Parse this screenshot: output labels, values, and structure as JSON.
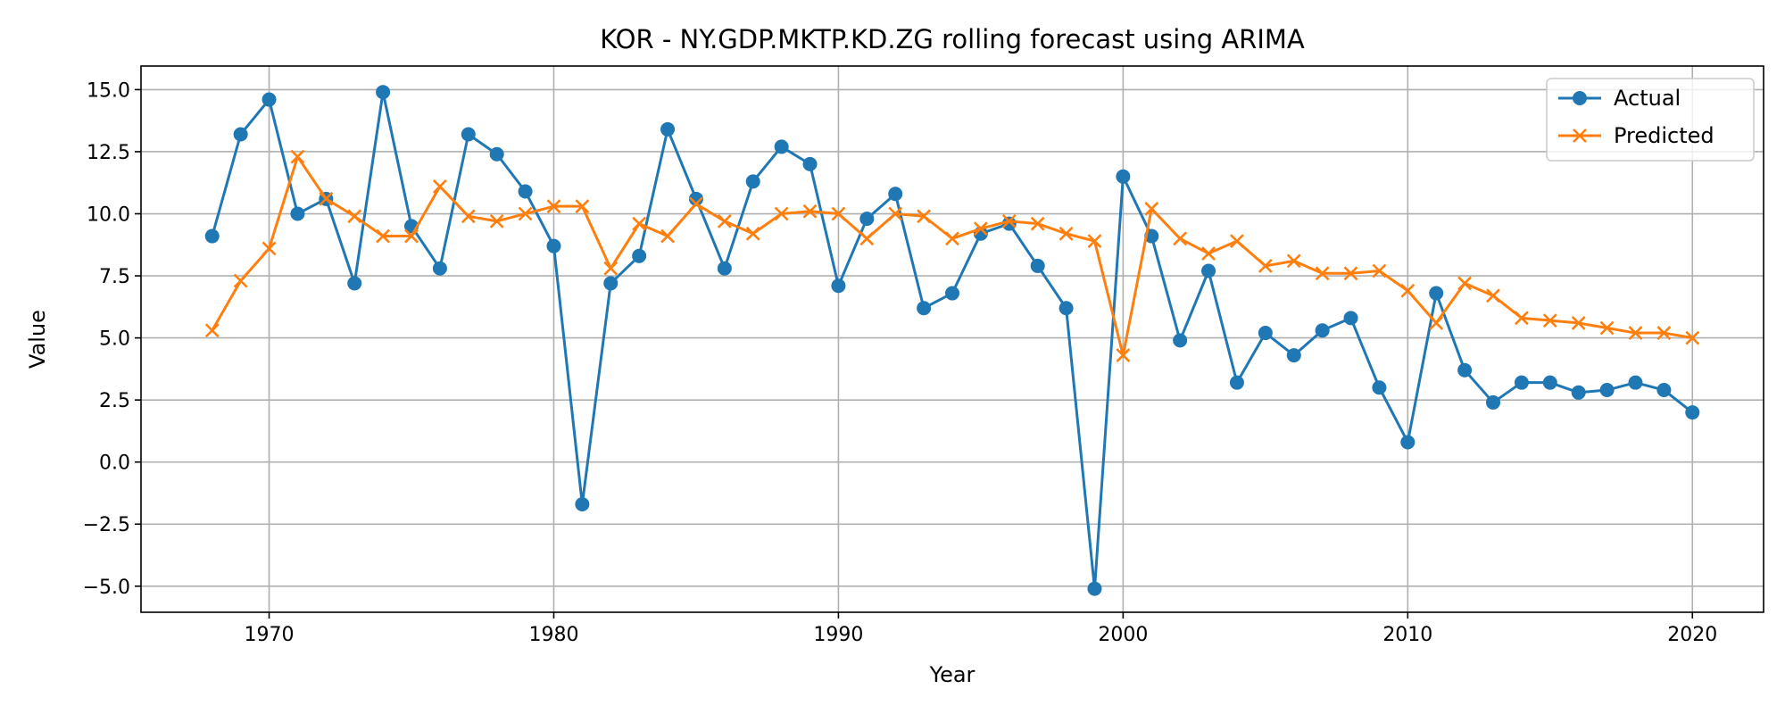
{
  "chart_data": {
    "type": "line",
    "title": "KOR - NY.GDP.MKTP.KD.ZG rolling forecast using ARIMA",
    "xlabel": "Year",
    "ylabel": "Value",
    "xlim": [
      1965.5,
      2022.5
    ],
    "ylim": [
      -6.05,
      15.95
    ],
    "x_ticks": [
      1970,
      1980,
      1990,
      2000,
      2010,
      2020
    ],
    "y_ticks": [
      -5.0,
      -2.5,
      0.0,
      2.5,
      5.0,
      7.5,
      10.0,
      12.5,
      15.0
    ],
    "y_tick_labels": [
      "−5.0",
      "−2.5",
      "0.0",
      "2.5",
      "5.0",
      "7.5",
      "10.0",
      "12.5",
      "15.0"
    ],
    "grid": true,
    "legend_position": "top-right",
    "x": [
      1968,
      1969,
      1970,
      1971,
      1972,
      1973,
      1974,
      1975,
      1976,
      1977,
      1978,
      1979,
      1980,
      1981,
      1982,
      1983,
      1984,
      1985,
      1986,
      1987,
      1988,
      1989,
      1990,
      1991,
      1992,
      1993,
      1994,
      1995,
      1996,
      1997,
      1998,
      1999,
      2000,
      2001,
      2002,
      2003,
      2004,
      2005,
      2006,
      2007,
      2008,
      2009,
      2010,
      2011,
      2012,
      2013,
      2014,
      2015,
      2016,
      2017,
      2018,
      2019,
      2020
    ],
    "series": [
      {
        "name": "Actual",
        "color": "#1f77b4",
        "marker": "circle",
        "values": [
          9.1,
          13.2,
          14.6,
          10.0,
          10.6,
          7.2,
          14.9,
          9.5,
          7.8,
          13.2,
          12.4,
          10.9,
          8.7,
          -1.7,
          7.2,
          8.3,
          13.4,
          10.6,
          7.8,
          11.3,
          12.7,
          12.0,
          7.1,
          9.8,
          10.8,
          6.2,
          6.8,
          9.2,
          9.6,
          7.9,
          6.2,
          -5.1,
          11.5,
          9.1,
          4.9,
          7.7,
          3.2,
          5.2,
          4.3,
          5.3,
          5.8,
          3.0,
          0.8,
          6.8,
          3.7,
          2.4,
          3.2,
          3.2,
          2.8,
          2.9,
          3.2,
          2.9,
          2.0
        ]
      },
      {
        "name": "Predicted",
        "color": "#ff7f0e",
        "marker": "x",
        "values": [
          5.3,
          7.3,
          8.6,
          12.3,
          10.6,
          9.9,
          9.1,
          9.1,
          11.1,
          9.9,
          9.7,
          10.0,
          10.3,
          10.3,
          7.8,
          9.6,
          9.1,
          10.4,
          9.7,
          9.2,
          10.0,
          10.1,
          10.0,
          9.0,
          10.0,
          9.9,
          9.0,
          9.4,
          9.7,
          9.6,
          9.2,
          8.9,
          4.3,
          10.2,
          9.0,
          8.4,
          8.9,
          7.9,
          8.1,
          7.6,
          7.6,
          7.7,
          6.9,
          5.6,
          7.2,
          6.7,
          5.8,
          5.7,
          5.6,
          5.4,
          5.2,
          5.2,
          5.0
        ]
      }
    ]
  }
}
